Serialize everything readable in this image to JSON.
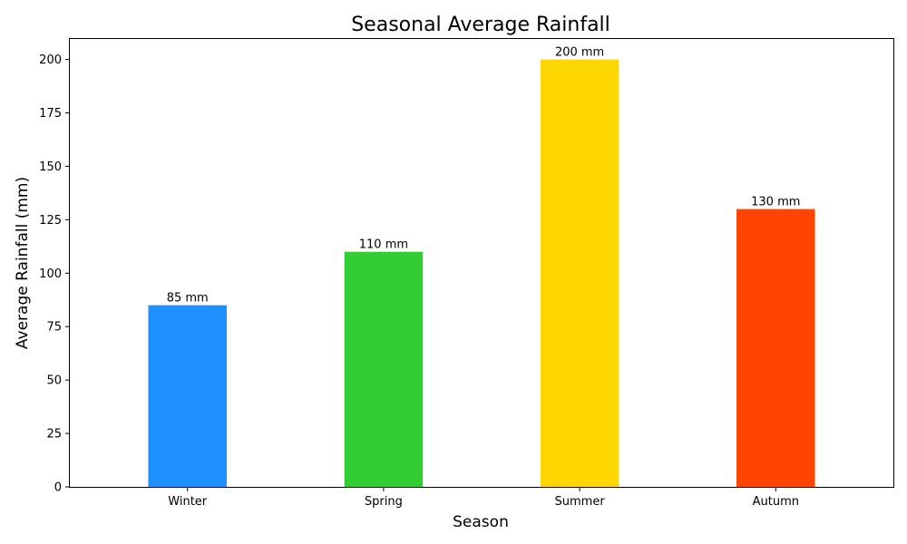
{
  "chart_data": {
    "type": "bar",
    "title": "Seasonal Average Rainfall",
    "xlabel": "Season",
    "ylabel": "Average Rainfall (mm)",
    "categories": [
      "Winter",
      "Spring",
      "Summer",
      "Autumn"
    ],
    "values": [
      85,
      110,
      200,
      130
    ],
    "data_labels": [
      "85 mm",
      "110 mm",
      "200 mm",
      "130 mm"
    ],
    "colors": [
      "#1E90FF",
      "#32CD32",
      "#FFD700",
      "#FF4500"
    ],
    "ylim": [
      0,
      210
    ],
    "yticks": [
      0,
      25,
      50,
      75,
      100,
      125,
      150,
      175,
      200
    ],
    "grid": false,
    "legend": "none"
  }
}
